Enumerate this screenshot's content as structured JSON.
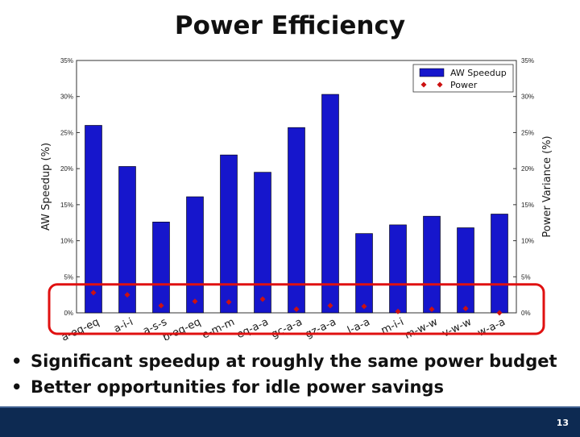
{
  "slide": {
    "title": "Power Efficiency",
    "bullets": [
      "Significant speedup at roughly the same power budget",
      "Better opportunities for idle power savings"
    ],
    "page_number": "13",
    "footer_color": "#0d2a52"
  },
  "chart_data": {
    "type": "bar",
    "categories": [
      "a-eq-eq",
      "a-i-i",
      "a-s-s",
      "b-eq-eq",
      "e-m-m",
      "eq-a-a",
      "gc-a-a",
      "gz-a-a",
      "l-a-a",
      "m-i-i",
      "m-w-w",
      "v-w-w",
      "w-a-a"
    ],
    "series": [
      {
        "name": "AW Speedup",
        "type": "bar",
        "color": "#1616cc",
        "values": [
          26.0,
          20.3,
          12.6,
          16.1,
          21.9,
          19.5,
          25.7,
          30.3,
          11.0,
          12.2,
          13.4,
          11.8,
          13.7
        ]
      },
      {
        "name": "Power",
        "type": "point",
        "marker": "diamond",
        "color": "#cc1111",
        "values": [
          2.8,
          2.5,
          1.0,
          1.6,
          1.5,
          1.9,
          0.5,
          1.0,
          0.9,
          0.2,
          0.5,
          0.6,
          0.0
        ]
      }
    ],
    "ylabel": "AW Speedup (%)",
    "y2label": "Power Variance (%)",
    "ylim": [
      0,
      35
    ],
    "yticks": [
      "0%",
      "5%",
      "10%",
      "15%",
      "20%",
      "25%",
      "30%",
      "35%"
    ],
    "legend": "top-right",
    "grid": false,
    "highlight": {
      "range": [
        0,
        3.5
      ],
      "color": "#e01010"
    }
  }
}
